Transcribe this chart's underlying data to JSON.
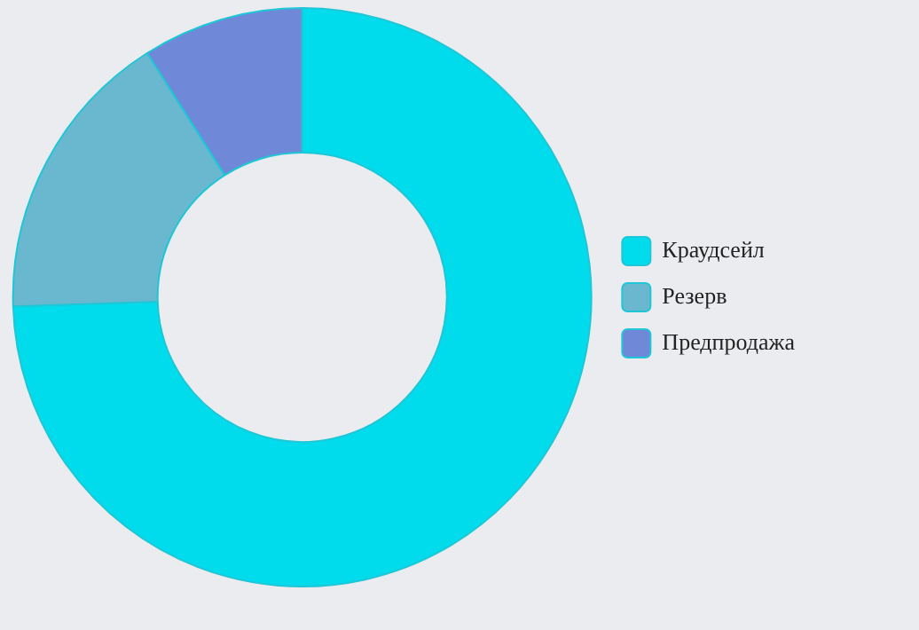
{
  "chart_data": {
    "type": "donut",
    "categories": [
      "Краудсейл",
      "Резерв",
      "Предпродажа"
    ],
    "values": [
      74.5,
      16.5,
      9
    ],
    "colors": [
      "#00dcec",
      "#6ab8d0",
      "#7088d8"
    ],
    "legend": "right"
  }
}
